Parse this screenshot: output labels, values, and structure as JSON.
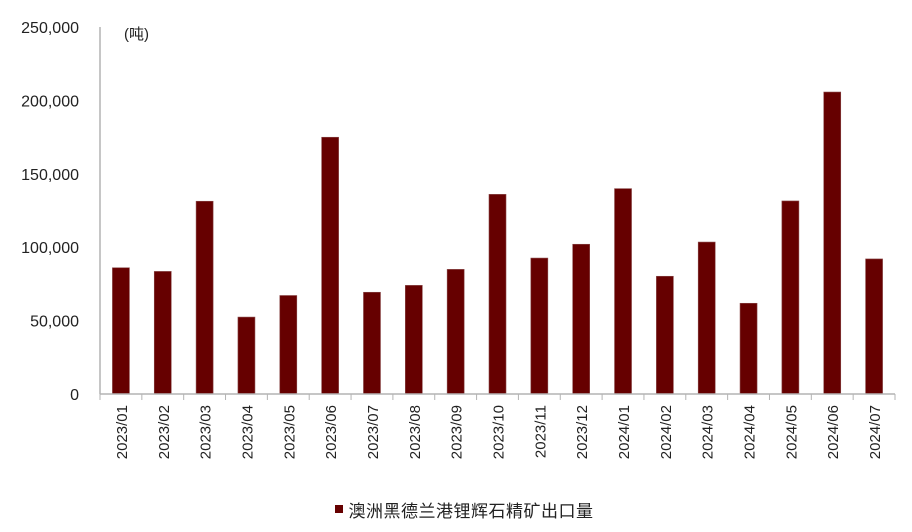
{
  "chart_data": {
    "type": "bar",
    "title": "",
    "unit_label": "(吨)",
    "xlabel": "",
    "ylabel": "吨",
    "ylim": [
      0,
      250000
    ],
    "yticks": [
      0,
      50000,
      100000,
      150000,
      200000,
      250000
    ],
    "ytick_labels": [
      "0",
      "50,000",
      "100,000",
      "150,000",
      "200,000",
      "250,000"
    ],
    "grid": false,
    "legend_position": "bottom",
    "categories": [
      "2023/01",
      "2023/02",
      "2023/03",
      "2023/04",
      "2023/05",
      "2023/06",
      "2023/07",
      "2023/08",
      "2023/09",
      "2023/10",
      "2023/11",
      "2023/12",
      "2024/01",
      "2024/02",
      "2024/03",
      "2024/04",
      "2024/05",
      "2024/06",
      "2024/07"
    ],
    "series": [
      {
        "name": "澳洲黑德兰港锂辉石精矿出口量",
        "color": "#660000",
        "values": [
          86000,
          83500,
          131300,
          52400,
          67100,
          174900,
          69300,
          74000,
          84900,
          136000,
          92600,
          102000,
          139900,
          80200,
          103500,
          61800,
          131500,
          205700,
          92000
        ]
      }
    ]
  },
  "legend": {
    "label": "澳洲黑德兰港锂辉石精矿出口量",
    "color": "#660000"
  }
}
